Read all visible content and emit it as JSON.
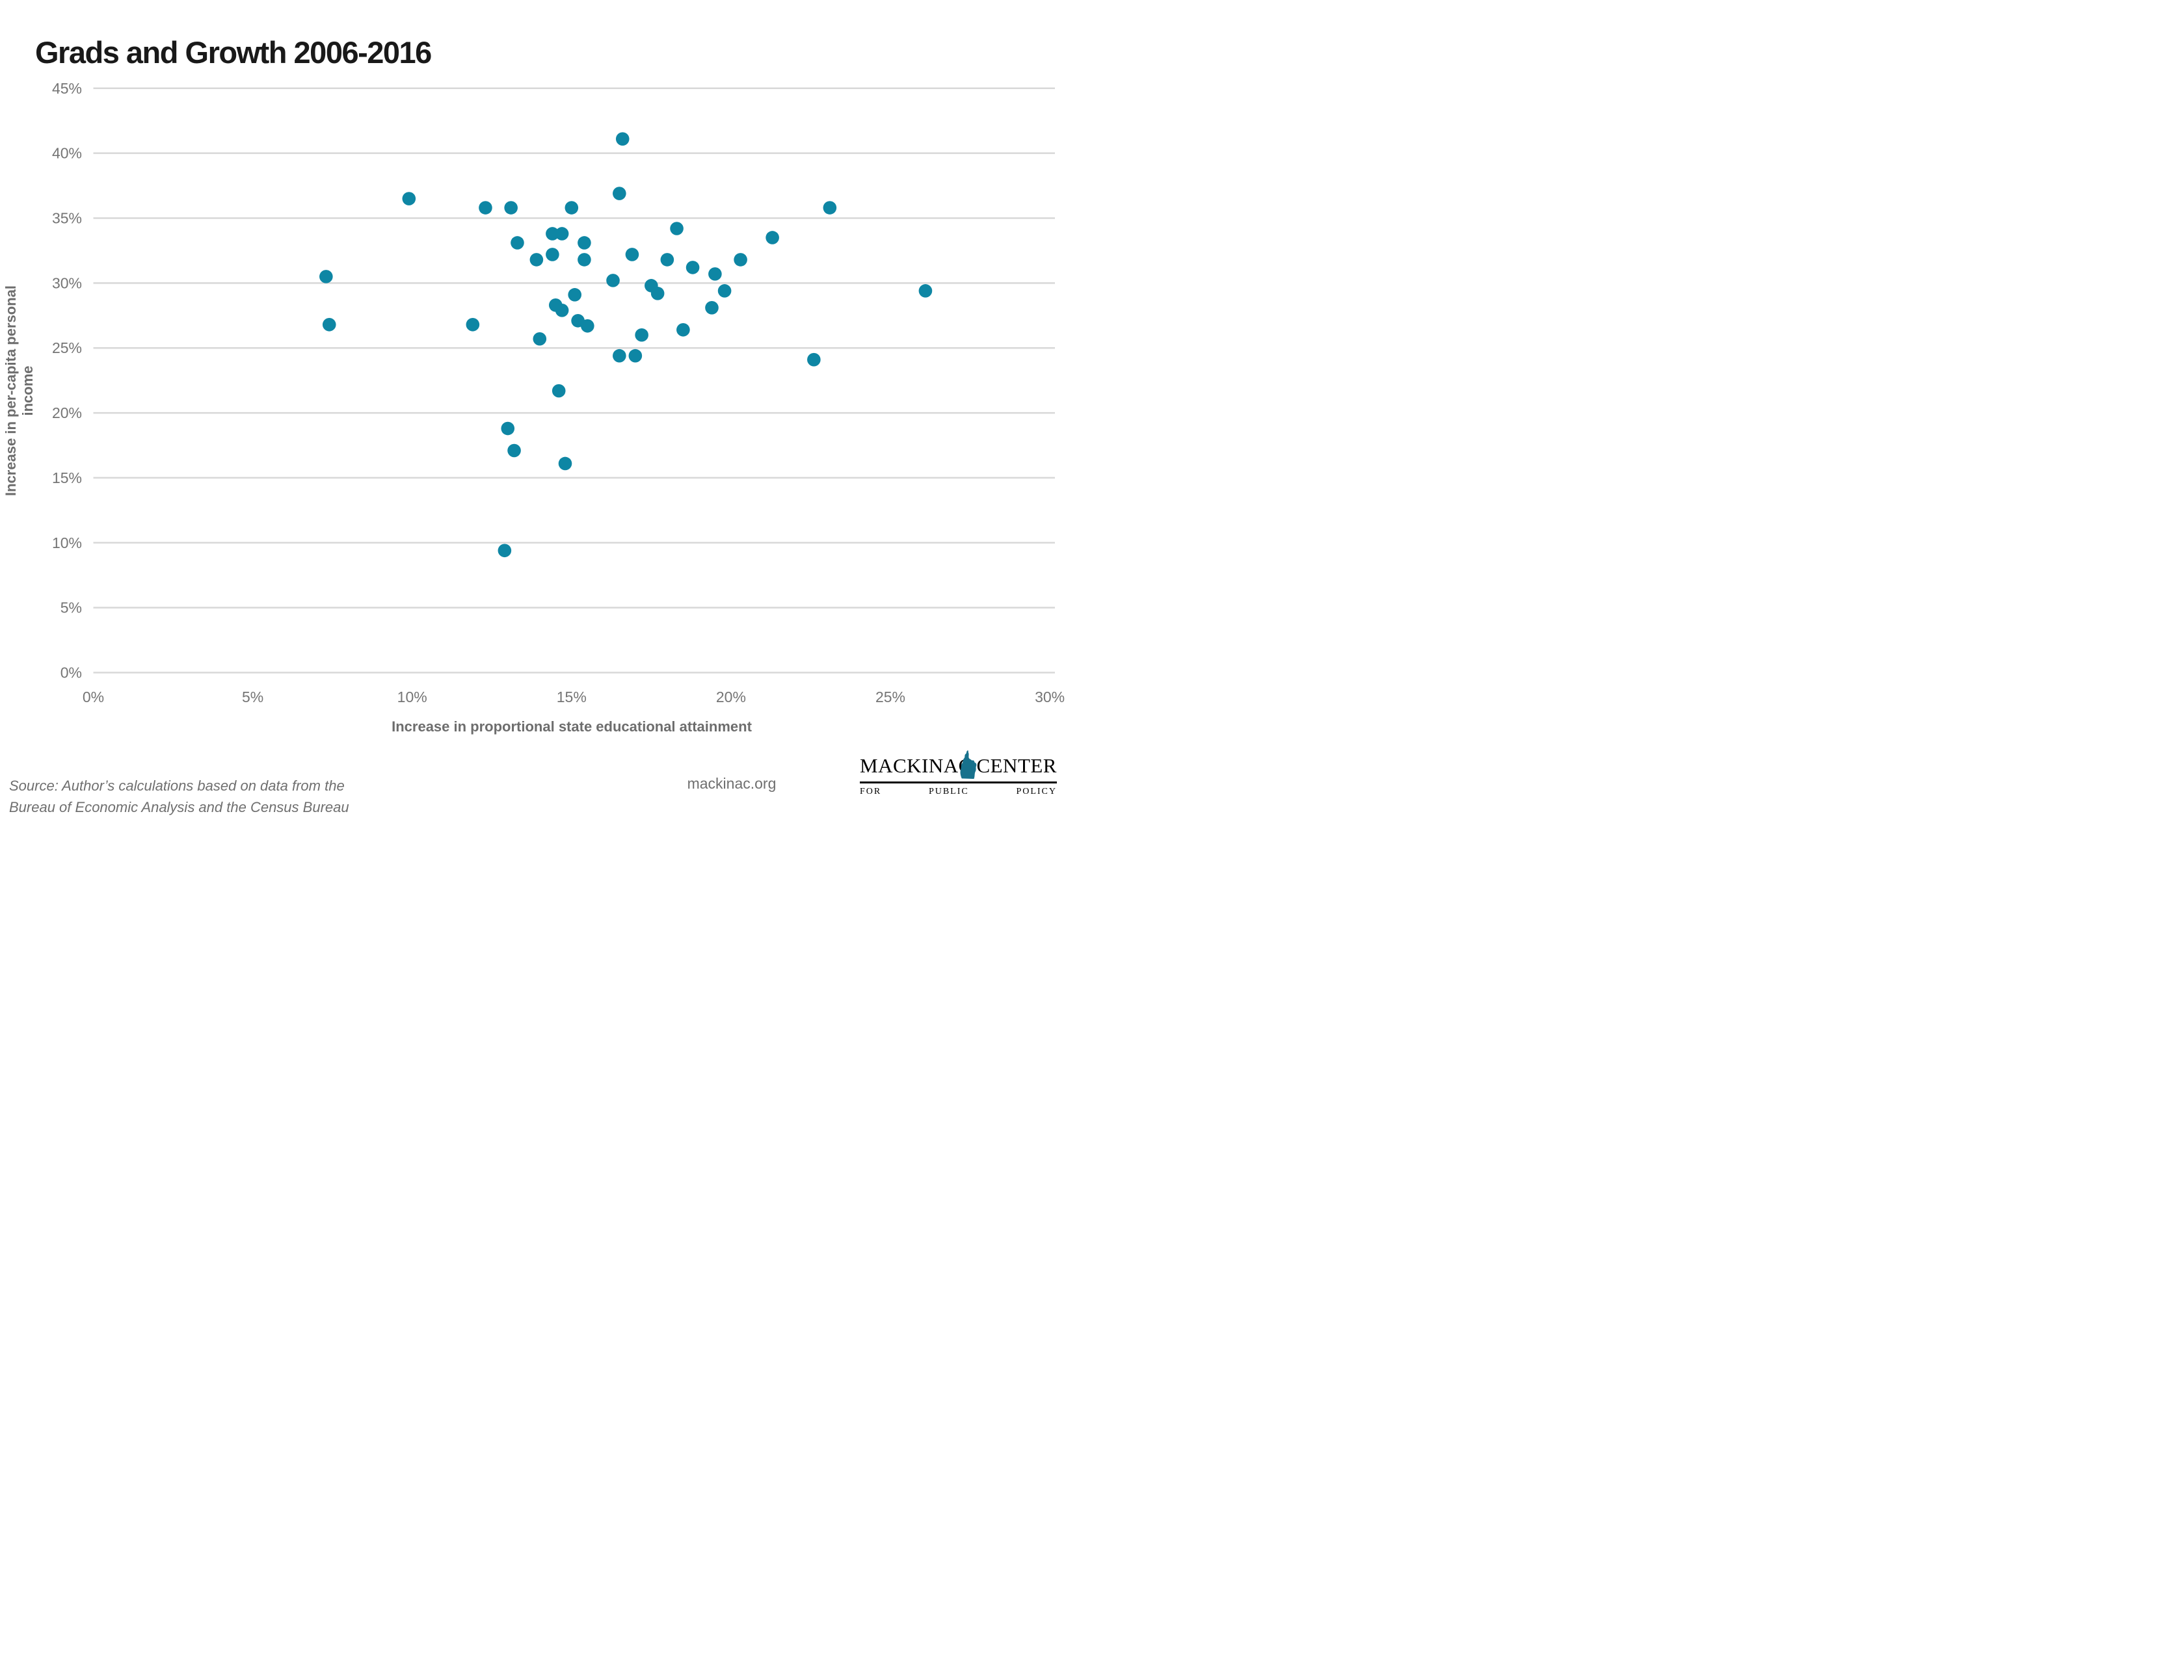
{
  "title": "Grads and Growth 2006-2016",
  "chart_data": {
    "type": "scatter",
    "title": "Grads and Growth 2006-2016",
    "xlabel": "Increase in proportional state educational attainment",
    "ylabel": "Increase in per-capita personal income",
    "xlim": [
      0,
      30
    ],
    "ylim": [
      0,
      45
    ],
    "x_ticks": [
      "0%",
      "5%",
      "10%",
      "15%",
      "20%",
      "25%",
      "30%"
    ],
    "y_ticks": [
      "0%",
      "5%",
      "10%",
      "15%",
      "20%",
      "25%",
      "30%",
      "35%",
      "40%",
      "45%"
    ],
    "grid": "horizontal",
    "legend": "none",
    "point_color": "#0e86a4",
    "gridline_color": "#d8d8d8",
    "tick_label_color": "#757575",
    "points": [
      [
        7.3,
        30.5
      ],
      [
        7.4,
        26.8
      ],
      [
        9.9,
        36.5
      ],
      [
        11.9,
        26.8
      ],
      [
        12.3,
        35.8
      ],
      [
        12.9,
        9.4
      ],
      [
        13.0,
        18.8
      ],
      [
        13.1,
        35.8
      ],
      [
        13.2,
        17.1
      ],
      [
        13.3,
        33.1
      ],
      [
        13.9,
        31.8
      ],
      [
        14.0,
        25.7
      ],
      [
        14.4,
        33.8
      ],
      [
        14.4,
        32.2
      ],
      [
        14.5,
        28.3
      ],
      [
        14.6,
        21.7
      ],
      [
        14.7,
        33.8
      ],
      [
        14.7,
        27.9
      ],
      [
        14.8,
        16.1
      ],
      [
        15.0,
        35.8
      ],
      [
        15.1,
        29.1
      ],
      [
        15.2,
        27.1
      ],
      [
        15.4,
        33.1
      ],
      [
        15.4,
        31.8
      ],
      [
        15.5,
        26.7
      ],
      [
        16.3,
        30.2
      ],
      [
        16.5,
        36.9
      ],
      [
        16.5,
        24.4
      ],
      [
        16.6,
        41.1
      ],
      [
        16.9,
        32.2
      ],
      [
        17.0,
        24.4
      ],
      [
        17.2,
        26.0
      ],
      [
        17.5,
        29.8
      ],
      [
        17.7,
        29.2
      ],
      [
        18.0,
        31.8
      ],
      [
        18.3,
        34.2
      ],
      [
        18.5,
        26.4
      ],
      [
        18.8,
        31.2
      ],
      [
        19.4,
        28.1
      ],
      [
        19.5,
        30.7
      ],
      [
        19.8,
        29.4
      ],
      [
        20.3,
        31.8
      ],
      [
        21.3,
        33.5
      ],
      [
        22.6,
        24.1
      ],
      [
        23.1,
        35.8
      ],
      [
        26.1,
        29.4
      ]
    ]
  },
  "footer": {
    "source_line1": "Source: Author’s calculations based on data from the",
    "source_line2": "Bureau of Economic Analysis and the Census Bureau",
    "website": "mackinac.org",
    "logo": {
      "word_left": "MACKINAC",
      "word_right": "CENTER",
      "tagline": "FOR PUBLIC POLICY",
      "icon": "michigan-mitten-icon",
      "icon_color": "#17718c"
    }
  }
}
